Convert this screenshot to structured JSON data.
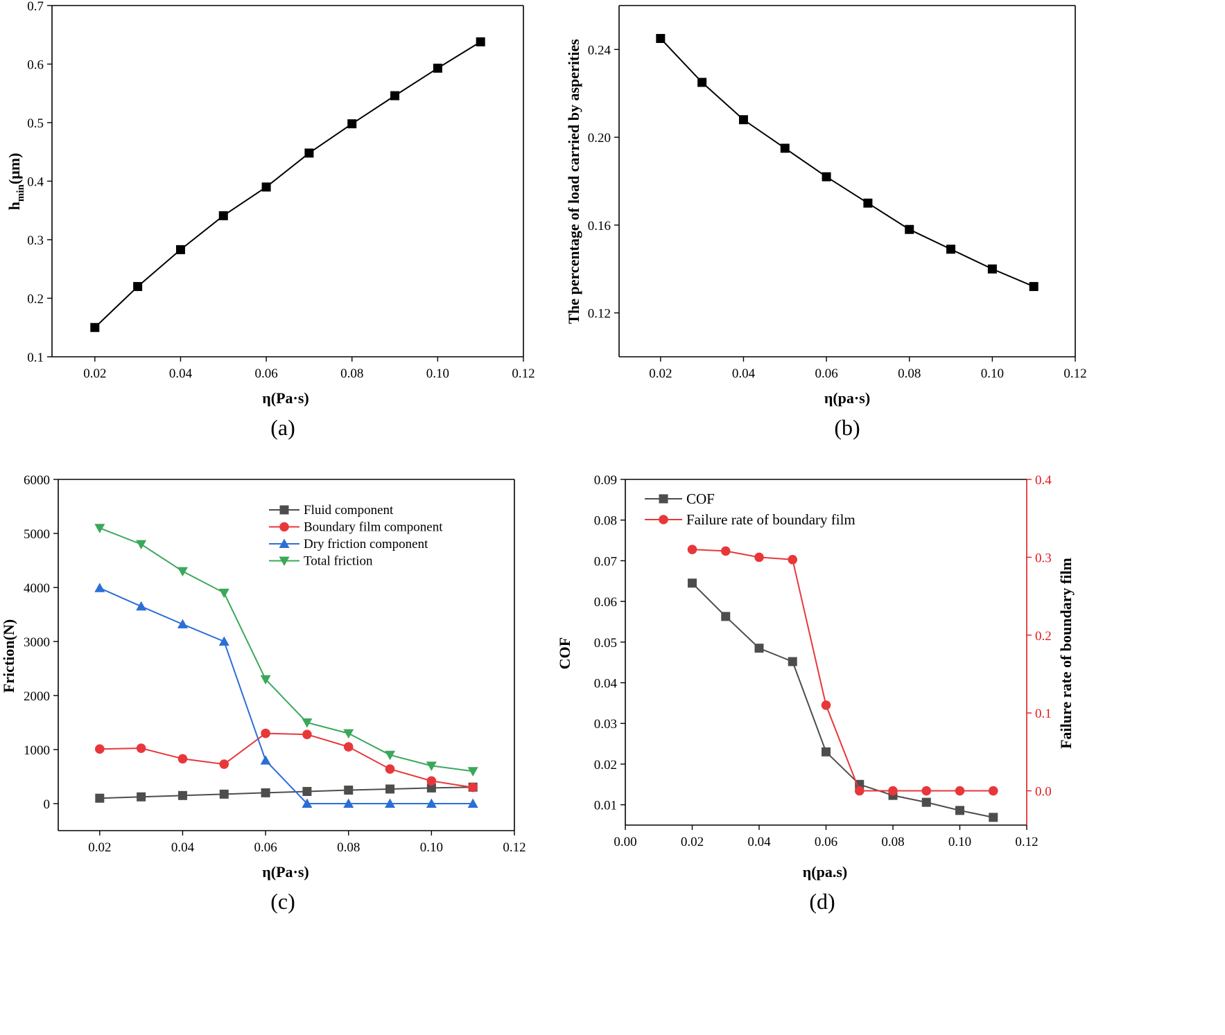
{
  "figure": {
    "panels": [
      "(a)",
      "(b)",
      "(c)",
      "(d)"
    ]
  },
  "chart_data": [
    {
      "id": "a",
      "type": "line",
      "caption": "(a)",
      "xlabel": "η(Pa·s)",
      "ylabel_main": "h",
      "ylabel_sub": "min",
      "ylabel_tail": "(μm)",
      "xlim": [
        0.01,
        0.12
      ],
      "ylim": [
        0.1,
        0.7
      ],
      "xticks": [
        0.02,
        0.04,
        0.06,
        0.08,
        0.1,
        0.12
      ],
      "xtick_labels": [
        "0.02",
        "0.04",
        "0.06",
        "0.08",
        "0.10",
        "0.12"
      ],
      "yticks": [
        0.1,
        0.2,
        0.3,
        0.4,
        0.5,
        0.6,
        0.7
      ],
      "ytick_labels": [
        "0.1",
        "0.2",
        "0.3",
        "0.4",
        "0.5",
        "0.6",
        "0.7"
      ],
      "x": [
        0.02,
        0.03,
        0.04,
        0.05,
        0.06,
        0.07,
        0.08,
        0.09,
        0.1,
        0.11
      ],
      "series": [
        {
          "name": "h_min",
          "color": "#000000",
          "marker": "square",
          "values": [
            0.15,
            0.22,
            0.283,
            0.341,
            0.39,
            0.448,
            0.498,
            0.546,
            0.593,
            0.638
          ]
        }
      ]
    },
    {
      "id": "b",
      "type": "line",
      "caption": "(b)",
      "xlabel": "η(pa·s)",
      "ylabel": "The percentage of load carried by asperities",
      "xlim": [
        0.01,
        0.12
      ],
      "ylim": [
        0.1,
        0.26
      ],
      "xticks": [
        0.02,
        0.04,
        0.06,
        0.08,
        0.1,
        0.12
      ],
      "xtick_labels": [
        "0.02",
        "0.04",
        "0.06",
        "0.08",
        "0.10",
        "0.12"
      ],
      "yticks": [
        0.12,
        0.16,
        0.2,
        0.24
      ],
      "ytick_labels": [
        "0.12",
        "0.16",
        "0.20",
        "0.24"
      ],
      "x": [
        0.02,
        0.03,
        0.04,
        0.05,
        0.06,
        0.07,
        0.08,
        0.09,
        0.1,
        0.11
      ],
      "series": [
        {
          "name": "load percentage",
          "color": "#000000",
          "marker": "square",
          "values": [
            0.245,
            0.225,
            0.208,
            0.195,
            0.182,
            0.17,
            0.158,
            0.149,
            0.14,
            0.132
          ]
        }
      ]
    },
    {
      "id": "c",
      "type": "line",
      "caption": "(c)",
      "xlabel": "η(Pa·s)",
      "ylabel": "Friction(N)",
      "xlim": [
        0.01,
        0.12
      ],
      "ylim": [
        -500,
        6000
      ],
      "xticks": [
        0.02,
        0.04,
        0.06,
        0.08,
        0.1,
        0.12
      ],
      "xtick_labels": [
        "0.02",
        "0.04",
        "0.06",
        "0.08",
        "0.10",
        "0.12"
      ],
      "yticks": [
        0,
        1000,
        2000,
        3000,
        4000,
        5000,
        6000
      ],
      "ytick_labels": [
        "0",
        "1000",
        "2000",
        "3000",
        "4000",
        "5000",
        "6000"
      ],
      "legend_position": "top-right",
      "x": [
        0.02,
        0.03,
        0.04,
        0.05,
        0.06,
        0.07,
        0.08,
        0.09,
        0.1,
        0.11
      ],
      "series": [
        {
          "name": "Fluid component",
          "color": "#4d4d4d",
          "marker": "square",
          "values": [
            100,
            125,
            150,
            175,
            200,
            225,
            250,
            270,
            290,
            305
          ]
        },
        {
          "name": "Boundary film component",
          "color": "#e8373b",
          "marker": "circle",
          "values": [
            1010,
            1025,
            830,
            730,
            1300,
            1280,
            1050,
            640,
            420,
            300
          ]
        },
        {
          "name": "Dry friction component",
          "color": "#2b6fd6",
          "marker": "triangle-up",
          "values": [
            3990,
            3650,
            3320,
            3000,
            800,
            0,
            0,
            0,
            0,
            0
          ]
        },
        {
          "name": "Total friction",
          "color": "#3aa85a",
          "marker": "triangle-down",
          "values": [
            5100,
            4800,
            4300,
            3900,
            2300,
            1500,
            1300,
            900,
            700,
            600
          ]
        }
      ]
    },
    {
      "id": "d",
      "type": "line",
      "caption": "(d)",
      "xlabel": "η(pa.s)",
      "ylabel": "COF",
      "ylabel_right": "Failure rate of boundary film",
      "xlim": [
        0.0,
        0.12
      ],
      "ylim": [
        0.005,
        0.09
      ],
      "ylim_right": [
        -0.044,
        0.4
      ],
      "xticks": [
        0.0,
        0.02,
        0.04,
        0.06,
        0.08,
        0.1,
        0.12
      ],
      "xtick_labels": [
        "0.00",
        "0.02",
        "0.04",
        "0.06",
        "0.08",
        "0.10",
        "0.12"
      ],
      "yticks": [
        0.01,
        0.02,
        0.03,
        0.04,
        0.05,
        0.06,
        0.07,
        0.08,
        0.09
      ],
      "ytick_labels": [
        "0.01",
        "0.02",
        "0.03",
        "0.04",
        "0.05",
        "0.06",
        "0.07",
        "0.08",
        "0.09"
      ],
      "yticks_right": [
        0.0,
        0.1,
        0.2,
        0.3,
        0.4
      ],
      "ytick_labels_right": [
        "0.0",
        "0.1",
        "0.2",
        "0.3",
        "0.4"
      ],
      "legend_position": "top-left",
      "right_axis_color": "#e31a1c",
      "x": [
        0.02,
        0.03,
        0.04,
        0.05,
        0.06,
        0.07,
        0.08,
        0.09,
        0.1,
        0.11
      ],
      "series": [
        {
          "name": "COF",
          "color": "#4d4d4d",
          "marker": "square",
          "axis": "left",
          "values": [
            0.0645,
            0.0563,
            0.0485,
            0.0452,
            0.023,
            0.015,
            0.0123,
            0.0106,
            0.0086,
            0.0069
          ]
        },
        {
          "name": "Failure rate of boundary film",
          "color": "#e8373b",
          "marker": "circle",
          "axis": "right",
          "values": [
            0.31,
            0.308,
            0.3,
            0.297,
            0.11,
            0.0,
            0.0,
            0.0,
            0.0,
            0.0
          ]
        }
      ]
    }
  ]
}
